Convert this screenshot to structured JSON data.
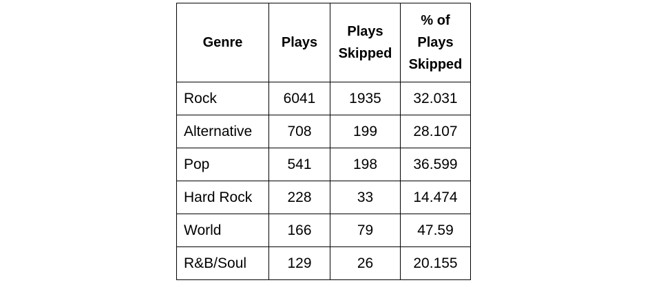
{
  "table": {
    "headers": {
      "genre": "Genre",
      "plays": "Plays",
      "skipped": [
        "Plays",
        "Skipped"
      ],
      "pct": [
        "% of",
        "Plays",
        "Skipped"
      ]
    },
    "rows": [
      {
        "genre": "Rock",
        "plays": "6041",
        "skipped": "1935",
        "pct": "32.031"
      },
      {
        "genre": "Alternative",
        "plays": "708",
        "skipped": "199",
        "pct": "28.107"
      },
      {
        "genre": "Pop",
        "plays": "541",
        "skipped": "198",
        "pct": "36.599"
      },
      {
        "genre": "Hard Rock",
        "plays": "228",
        "skipped": "33",
        "pct": "14.474"
      },
      {
        "genre": "World",
        "plays": "166",
        "skipped": "79",
        "pct": "47.59"
      },
      {
        "genre": "R&B/Soul",
        "plays": "129",
        "skipped": "26",
        "pct": "20.155"
      }
    ]
  }
}
